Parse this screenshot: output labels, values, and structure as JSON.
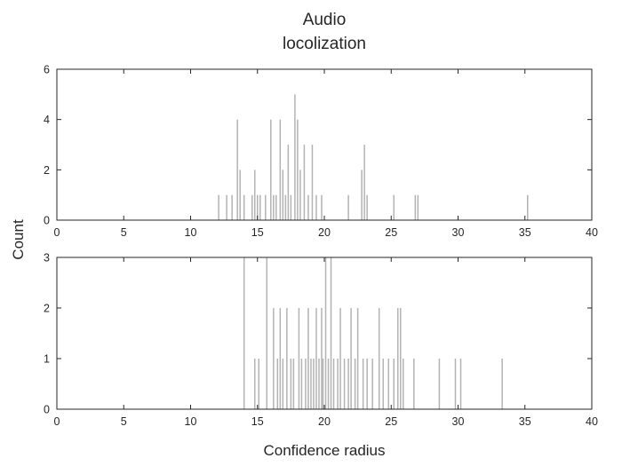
{
  "chart_data": {
    "type": "bar",
    "title_lines": [
      "Audio",
      "locolization"
    ],
    "xlabel": "Confidence radius",
    "ylabel": "Count",
    "bar_color": "#b3b3b3",
    "axis_color": "#262626",
    "grid": false,
    "subplots": [
      {
        "xlim": [
          0,
          40
        ],
        "ylim": [
          0,
          6
        ],
        "xticks": [
          "0",
          "5",
          "10",
          "15",
          "20",
          "25",
          "30",
          "35",
          "40"
        ],
        "yticks": [
          "0",
          "2",
          "4",
          "6"
        ],
        "x": [
          12.1,
          12.7,
          13.1,
          13.5,
          13.7,
          14.0,
          14.6,
          14.8,
          15.0,
          15.2,
          15.6,
          16.0,
          16.2,
          16.4,
          16.7,
          16.9,
          17.1,
          17.3,
          17.5,
          17.8,
          18.0,
          18.2,
          18.5,
          18.8,
          19.1,
          19.4,
          19.8,
          21.8,
          22.8,
          23.0,
          23.2,
          25.2,
          26.8,
          27.0,
          35.2
        ],
        "y": [
          1,
          1,
          1,
          4,
          2,
          1,
          1,
          2,
          1,
          1,
          1,
          4,
          1,
          1,
          4,
          2,
          1,
          3,
          1,
          5,
          4,
          2,
          3,
          1,
          3,
          1,
          1,
          1,
          2,
          3,
          1,
          1,
          1,
          1,
          1
        ]
      },
      {
        "xlim": [
          0,
          40
        ],
        "ylim": [
          0,
          3
        ],
        "xticks": [
          "0",
          "5",
          "10",
          "15",
          "20",
          "25",
          "30",
          "35",
          "40"
        ],
        "yticks": [
          "0",
          "1",
          "2",
          "3"
        ],
        "x": [
          14.0,
          14.8,
          15.1,
          15.7,
          16.2,
          16.5,
          16.7,
          16.9,
          17.2,
          17.5,
          17.7,
          18.1,
          18.3,
          18.6,
          18.8,
          19.0,
          19.2,
          19.4,
          19.6,
          19.8,
          19.9,
          20.1,
          20.3,
          20.5,
          20.7,
          21.0,
          21.2,
          21.5,
          21.8,
          22.0,
          22.3,
          22.5,
          22.9,
          23.2,
          23.6,
          24.1,
          24.4,
          24.8,
          25.2,
          25.5,
          25.7,
          25.9,
          26.7,
          28.6,
          29.8,
          30.2,
          33.3
        ],
        "y": [
          3,
          1,
          1,
          3,
          2,
          1,
          2,
          1,
          2,
          1,
          1,
          2,
          1,
          1,
          2,
          1,
          1,
          2,
          1,
          2,
          1,
          3,
          1,
          3,
          1,
          1,
          2,
          1,
          1,
          2,
          1,
          2,
          1,
          1,
          1,
          2,
          1,
          1,
          1,
          2,
          2,
          1,
          1,
          1,
          1,
          1,
          1
        ]
      }
    ]
  }
}
